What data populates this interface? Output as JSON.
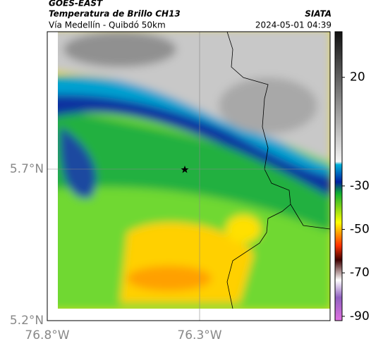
{
  "header": {
    "title": "GOES-EAST",
    "subtitle": "Temperatura de Brillo CH13",
    "brand": "SIATA",
    "location": "Vía Medellín - Quibdó 50km",
    "datetime": "2024-05-01 04:39"
  },
  "axes": {
    "y_ticks": [
      "5.7°N",
      "5.2°N"
    ],
    "x_ticks": [
      "76.8°W",
      "76.3°W"
    ]
  },
  "colorbar": {
    "lim": [
      -92,
      41
    ],
    "ticks": [
      20,
      -30,
      -50,
      -70,
      -90
    ]
  }
}
